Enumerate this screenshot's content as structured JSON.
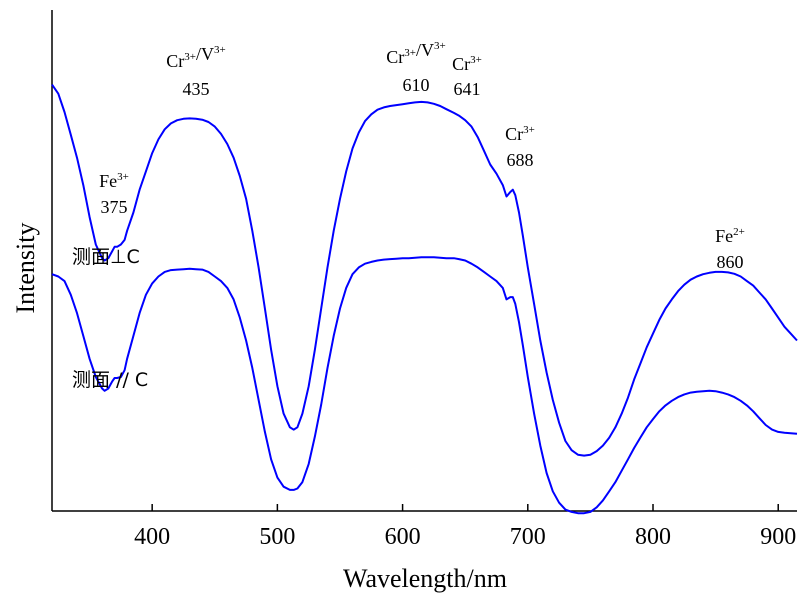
{
  "chart_data": {
    "type": "line",
    "xlabel": "Wavelength/nm",
    "ylabel": "Intensity",
    "xlim": [
      320,
      915
    ],
    "ylim": [
      0,
      1
    ],
    "xticks": [
      400,
      500,
      600,
      700,
      800,
      900
    ],
    "y_tick_labels": "none",
    "grid": false,
    "line_color": "#0000ff",
    "series": [
      {
        "label": "测面⊥C",
        "x": [
          320,
          325,
          330,
          335,
          340,
          345,
          350,
          355,
          360,
          362,
          365,
          368,
          370,
          372,
          375,
          378,
          380,
          385,
          390,
          395,
          400,
          405,
          410,
          415,
          420,
          425,
          430,
          435,
          440,
          445,
          450,
          455,
          460,
          465,
          470,
          475,
          480,
          485,
          490,
          495,
          500,
          505,
          510,
          513,
          516,
          520,
          525,
          530,
          535,
          540,
          545,
          550,
          555,
          560,
          565,
          570,
          575,
          580,
          585,
          590,
          595,
          600,
          605,
          610,
          615,
          620,
          625,
          630,
          635,
          641,
          645,
          650,
          655,
          660,
          665,
          670,
          675,
          680,
          683,
          686,
          688,
          690,
          693,
          696,
          700,
          705,
          710,
          715,
          720,
          725,
          730,
          735,
          740,
          745,
          750,
          755,
          760,
          765,
          770,
          775,
          780,
          785,
          790,
          795,
          800,
          805,
          810,
          815,
          820,
          825,
          830,
          835,
          840,
          845,
          850,
          855,
          860,
          865,
          870,
          875,
          880,
          885,
          890,
          895,
          900,
          905,
          910,
          915
        ],
        "y": [
          0.92,
          0.9,
          0.86,
          0.81,
          0.76,
          0.7,
          0.63,
          0.57,
          0.54,
          0.535,
          0.54,
          0.555,
          0.565,
          0.565,
          0.57,
          0.58,
          0.6,
          0.64,
          0.69,
          0.73,
          0.77,
          0.8,
          0.822,
          0.835,
          0.842,
          0.845,
          0.846,
          0.845,
          0.843,
          0.838,
          0.828,
          0.812,
          0.79,
          0.76,
          0.72,
          0.67,
          0.6,
          0.52,
          0.43,
          0.34,
          0.26,
          0.2,
          0.17,
          0.165,
          0.17,
          0.2,
          0.26,
          0.34,
          0.43,
          0.52,
          0.6,
          0.67,
          0.73,
          0.78,
          0.815,
          0.84,
          0.855,
          0.865,
          0.87,
          0.873,
          0.875,
          0.877,
          0.879,
          0.881,
          0.882,
          0.881,
          0.878,
          0.873,
          0.866,
          0.858,
          0.852,
          0.842,
          0.828,
          0.805,
          0.775,
          0.745,
          0.725,
          0.7,
          0.675,
          0.685,
          0.69,
          0.678,
          0.64,
          0.59,
          0.52,
          0.44,
          0.36,
          0.29,
          0.23,
          0.18,
          0.14,
          0.12,
          0.11,
          0.108,
          0.11,
          0.118,
          0.13,
          0.147,
          0.17,
          0.2,
          0.235,
          0.275,
          0.31,
          0.345,
          0.375,
          0.405,
          0.43,
          0.45,
          0.468,
          0.482,
          0.493,
          0.5,
          0.505,
          0.508,
          0.51,
          0.51,
          0.509,
          0.506,
          0.5,
          0.49,
          0.48,
          0.465,
          0.45,
          0.43,
          0.41,
          0.39,
          0.375,
          0.36
        ]
      },
      {
        "label": "测面 // C",
        "x": [
          320,
          325,
          330,
          335,
          340,
          345,
          350,
          355,
          360,
          362,
          365,
          368,
          370,
          372,
          375,
          378,
          380,
          385,
          390,
          395,
          400,
          405,
          410,
          415,
          420,
          425,
          430,
          435,
          440,
          445,
          450,
          455,
          460,
          465,
          470,
          475,
          480,
          485,
          490,
          495,
          500,
          505,
          510,
          513,
          516,
          520,
          525,
          530,
          535,
          540,
          545,
          550,
          555,
          560,
          565,
          570,
          575,
          580,
          585,
          590,
          595,
          600,
          605,
          610,
          615,
          620,
          625,
          630,
          635,
          641,
          645,
          650,
          655,
          660,
          665,
          670,
          675,
          680,
          683,
          686,
          688,
          690,
          693,
          696,
          700,
          705,
          710,
          715,
          720,
          725,
          730,
          735,
          740,
          745,
          750,
          755,
          760,
          765,
          770,
          775,
          780,
          785,
          790,
          795,
          800,
          805,
          810,
          815,
          820,
          825,
          830,
          835,
          840,
          845,
          850,
          855,
          860,
          865,
          870,
          875,
          880,
          885,
          890,
          895,
          900,
          905,
          910,
          915
        ],
        "y": [
          0.505,
          0.5,
          0.49,
          0.46,
          0.42,
          0.37,
          0.32,
          0.28,
          0.255,
          0.25,
          0.255,
          0.27,
          0.278,
          0.278,
          0.28,
          0.295,
          0.32,
          0.37,
          0.42,
          0.46,
          0.485,
          0.5,
          0.51,
          0.514,
          0.515,
          0.516,
          0.517,
          0.516,
          0.515,
          0.51,
          0.5,
          0.49,
          0.475,
          0.45,
          0.41,
          0.36,
          0.3,
          0.23,
          0.16,
          0.1,
          0.06,
          0.04,
          0.033,
          0.033,
          0.036,
          0.05,
          0.09,
          0.15,
          0.22,
          0.3,
          0.37,
          0.43,
          0.475,
          0.505,
          0.52,
          0.528,
          0.532,
          0.535,
          0.537,
          0.538,
          0.539,
          0.54,
          0.54,
          0.541,
          0.542,
          0.542,
          0.542,
          0.541,
          0.54,
          0.54,
          0.538,
          0.535,
          0.528,
          0.52,
          0.51,
          0.5,
          0.49,
          0.475,
          0.45,
          0.455,
          0.455,
          0.44,
          0.4,
          0.35,
          0.28,
          0.2,
          0.13,
          0.07,
          0.03,
          0.005,
          -0.01,
          -0.015,
          -0.018,
          -0.018,
          -0.015,
          -0.005,
          0.01,
          0.03,
          0.05,
          0.075,
          0.1,
          0.125,
          0.148,
          0.17,
          0.188,
          0.205,
          0.218,
          0.228,
          0.236,
          0.242,
          0.246,
          0.248,
          0.249,
          0.25,
          0.249,
          0.246,
          0.242,
          0.236,
          0.228,
          0.218,
          0.205,
          0.19,
          0.175,
          0.165,
          0.16,
          0.158,
          0.157,
          0.156
        ]
      }
    ],
    "annotations": [
      {
        "ion": "Fe",
        "charge": "3+",
        "value": "375"
      },
      {
        "ion": "Cr",
        "charge": "3+",
        "ion2": "V",
        "charge2": "3+",
        "value": "435"
      },
      {
        "ion": "Cr",
        "charge": "3+",
        "ion2": "V",
        "charge2": "3+",
        "value": "610"
      },
      {
        "ion": "Cr",
        "charge": "3+",
        "value": "641"
      },
      {
        "ion": "Cr",
        "charge": "3+",
        "value": "688"
      },
      {
        "ion": "Fe",
        "charge": "2+",
        "value": "860"
      }
    ],
    "series_labels": [
      "测面⊥C",
      "测面 // C"
    ]
  }
}
